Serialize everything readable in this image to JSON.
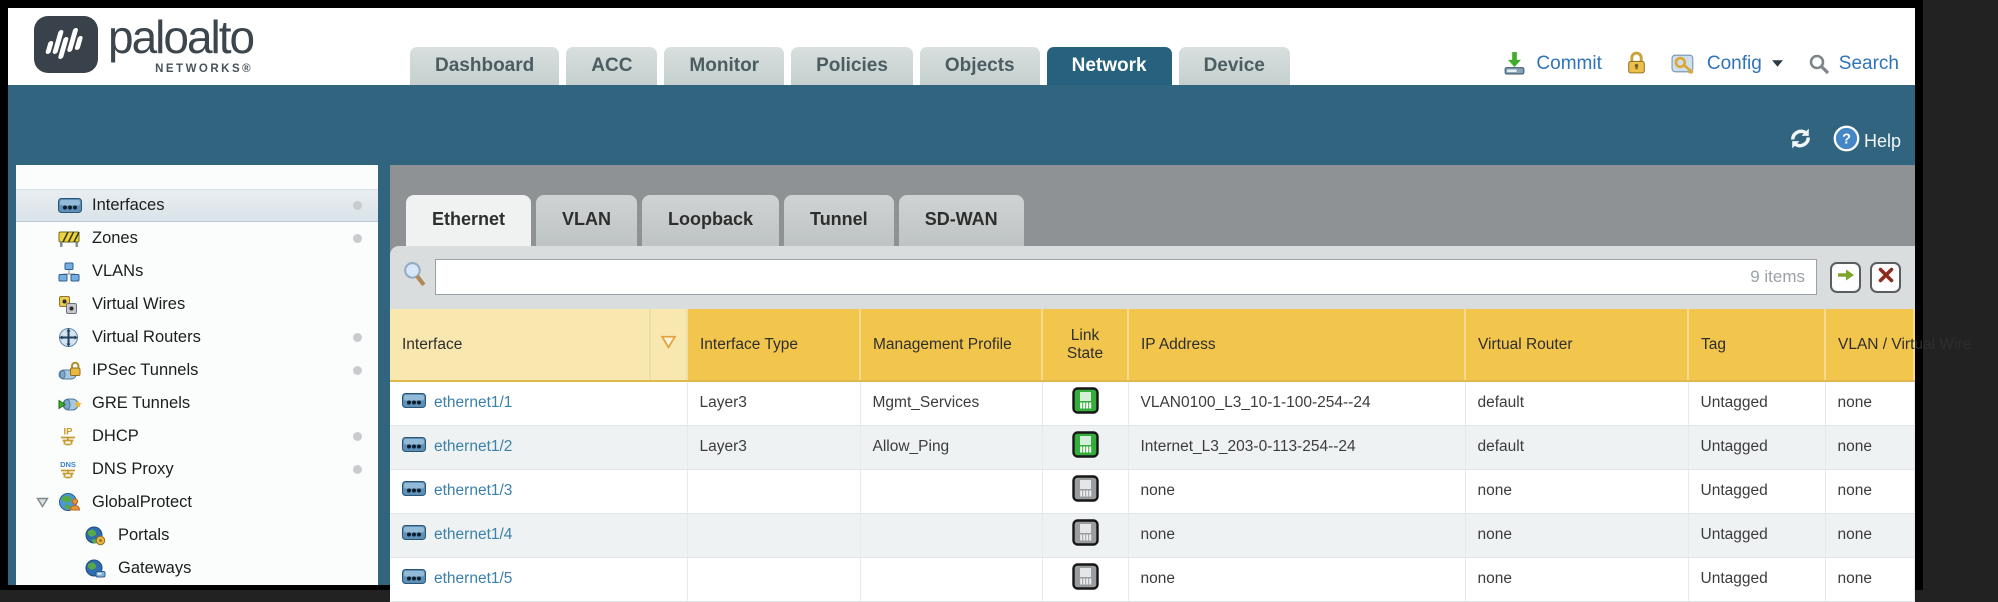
{
  "header": {
    "brand": {
      "name": "paloalto",
      "subtitle": "NETWORKS®"
    },
    "nav_tabs": [
      {
        "label": "Dashboard",
        "active": false
      },
      {
        "label": "ACC",
        "active": false
      },
      {
        "label": "Monitor",
        "active": false
      },
      {
        "label": "Policies",
        "active": false
      },
      {
        "label": "Objects",
        "active": false
      },
      {
        "label": "Network",
        "active": true
      },
      {
        "label": "Device",
        "active": false
      }
    ],
    "utilities": {
      "commit_label": "Commit",
      "config_label": "Config",
      "search_label": "Search"
    }
  },
  "toolbar": {
    "help_label": "Help"
  },
  "sidebar": {
    "items": [
      {
        "label": "Interfaces",
        "icon": "interfaces-icon",
        "selected": true,
        "dot": true,
        "child": false,
        "expandable": false
      },
      {
        "label": "Zones",
        "icon": "zones-icon",
        "selected": false,
        "dot": true,
        "child": false,
        "expandable": false
      },
      {
        "label": "VLANs",
        "icon": "vlans-icon",
        "selected": false,
        "dot": false,
        "child": false,
        "expandable": false
      },
      {
        "label": "Virtual Wires",
        "icon": "virtual-wires-icon",
        "selected": false,
        "dot": false,
        "child": false,
        "expandable": false
      },
      {
        "label": "Virtual Routers",
        "icon": "virtual-routers-icon",
        "selected": false,
        "dot": true,
        "child": false,
        "expandable": false
      },
      {
        "label": "IPSec Tunnels",
        "icon": "ipsec-tunnels-icon",
        "selected": false,
        "dot": true,
        "child": false,
        "expandable": false
      },
      {
        "label": "GRE Tunnels",
        "icon": "gre-tunnels-icon",
        "selected": false,
        "dot": false,
        "child": false,
        "expandable": false
      },
      {
        "label": "DHCP",
        "icon": "dhcp-icon",
        "selected": false,
        "dot": true,
        "child": false,
        "expandable": false
      },
      {
        "label": "DNS Proxy",
        "icon": "dns-proxy-icon",
        "selected": false,
        "dot": true,
        "child": false,
        "expandable": false
      },
      {
        "label": "GlobalProtect",
        "icon": "globalprotect-icon",
        "selected": false,
        "dot": false,
        "child": false,
        "expandable": true
      },
      {
        "label": "Portals",
        "icon": "portals-icon",
        "selected": false,
        "dot": false,
        "child": true,
        "expandable": false
      },
      {
        "label": "Gateways",
        "icon": "gateways-icon",
        "selected": false,
        "dot": false,
        "child": true,
        "expandable": false
      }
    ]
  },
  "main": {
    "tabs": [
      {
        "label": "Ethernet",
        "active": true
      },
      {
        "label": "VLAN",
        "active": false
      },
      {
        "label": "Loopback",
        "active": false
      },
      {
        "label": "Tunnel",
        "active": false
      },
      {
        "label": "SD-WAN",
        "active": false
      }
    ],
    "filter": {
      "value": "",
      "count_text": "9 items"
    },
    "table": {
      "columns": [
        "Interface",
        "Interface Type",
        "Management Profile",
        "Link State",
        "IP Address",
        "Virtual Router",
        "Tag",
        "VLAN / Virtual Wire"
      ],
      "rows": [
        {
          "interface": "ethernet1/1",
          "interface_type": "Layer3",
          "management_profile": "Mgmt_Services",
          "link_state": "up",
          "ip_address": "VLAN0100_L3_10-1-100-254--24",
          "virtual_router": "default",
          "tag": "Untagged",
          "vlan_wire": "none"
        },
        {
          "interface": "ethernet1/2",
          "interface_type": "Layer3",
          "management_profile": "Allow_Ping",
          "link_state": "up",
          "ip_address": "Internet_L3_203-0-113-254--24",
          "virtual_router": "default",
          "tag": "Untagged",
          "vlan_wire": "none"
        },
        {
          "interface": "ethernet1/3",
          "interface_type": "",
          "management_profile": "",
          "link_state": "down",
          "ip_address": "none",
          "virtual_router": "none",
          "tag": "Untagged",
          "vlan_wire": "none"
        },
        {
          "interface": "ethernet1/4",
          "interface_type": "",
          "management_profile": "",
          "link_state": "down",
          "ip_address": "none",
          "virtual_router": "none",
          "tag": "Untagged",
          "vlan_wire": "none"
        },
        {
          "interface": "ethernet1/5",
          "interface_type": "",
          "management_profile": "",
          "link_state": "down",
          "ip_address": "none",
          "virtual_router": "none",
          "tag": "Untagged",
          "vlan_wire": "none"
        }
      ]
    }
  }
}
